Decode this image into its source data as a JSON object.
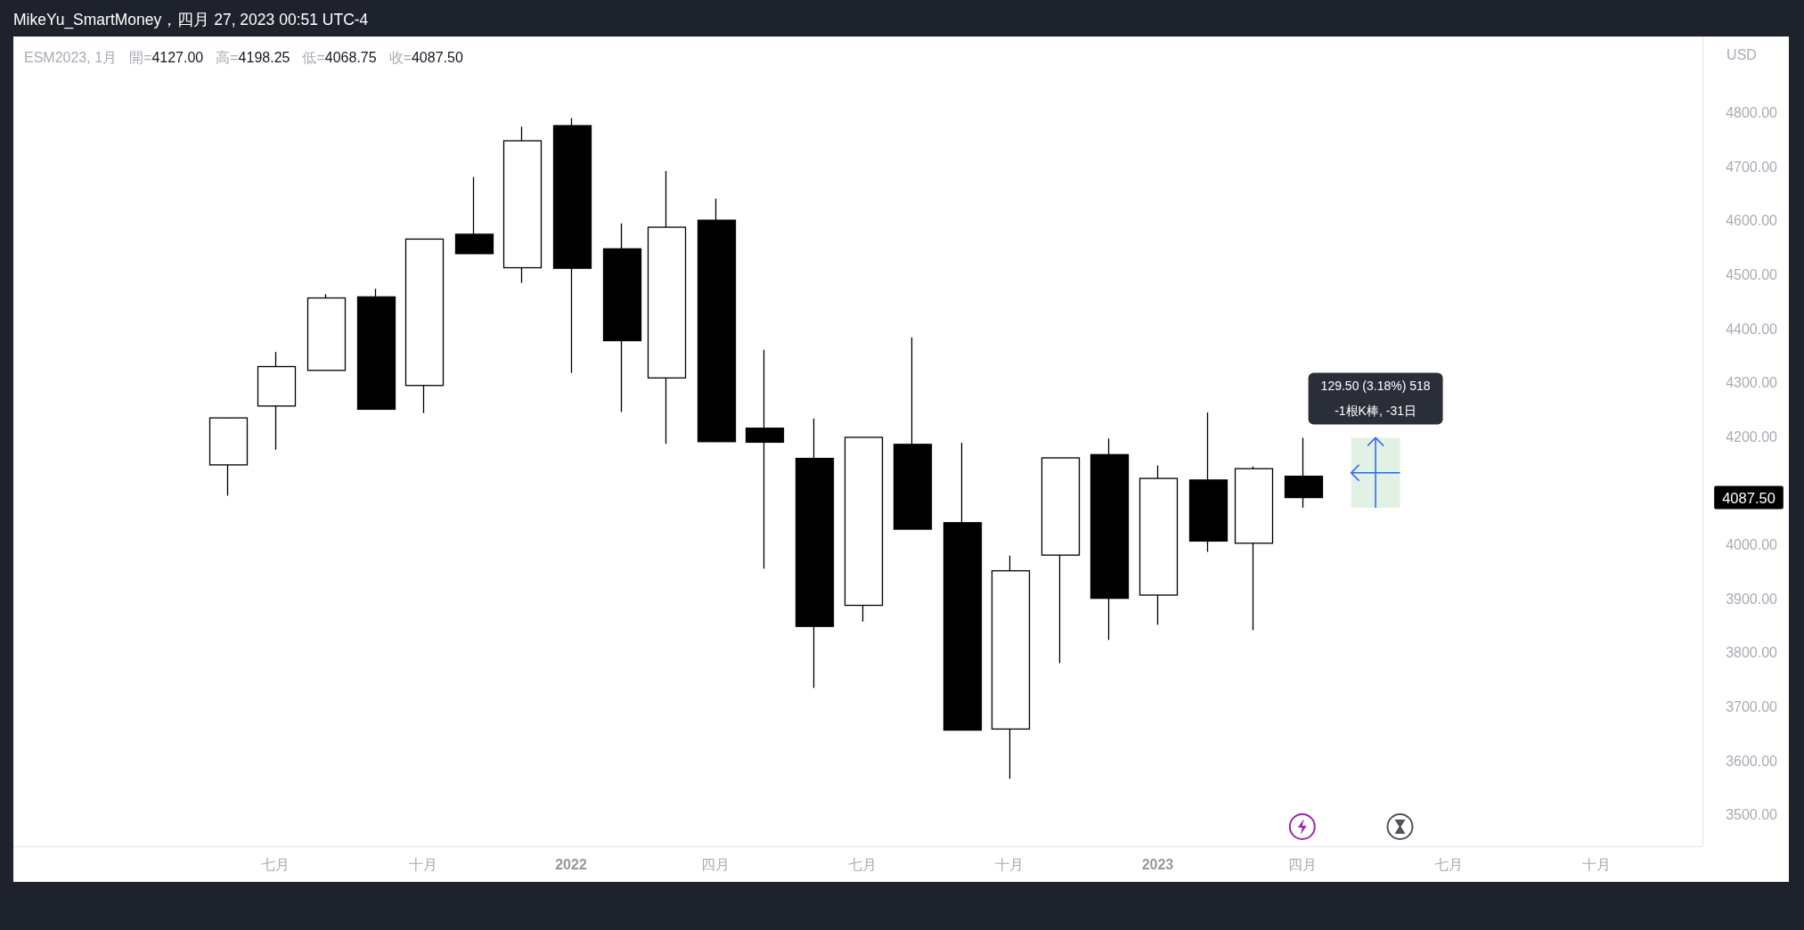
{
  "chart_data": {
    "type": "candlestick",
    "title": "MikeYu_SmartMoney，四月 27, 2023 00:51 UTC-4",
    "subtitle": "ESM2023, 1月",
    "ylabel": "USD",
    "annotations": [
      "開=4127.00",
      "高=4198.25",
      "低=4068.75",
      "收=4087.50",
      "129.50 (3.18%) 518\n-1根K棒, -31日",
      "4087.50"
    ],
    "x": [
      "2021-06",
      "2021-07",
      "2021-08",
      "2021-09",
      "2021-10",
      "2021-11",
      "2021-12",
      "2022-01",
      "2022-02",
      "2022-03",
      "2022-04",
      "2022-05",
      "2022-06",
      "2022-07",
      "2022-08",
      "2022-09",
      "2022-10",
      "2022-11",
      "2022-12",
      "2023-01",
      "2023-02",
      "2023-03",
      "2023-04"
    ],
    "ohlc": [
      [
        4148,
        4235,
        4091,
        4235
      ],
      [
        4257,
        4357,
        4176,
        4330
      ],
      [
        4323,
        4464,
        4323,
        4457
      ],
      [
        4459,
        4474,
        4251,
        4251
      ],
      [
        4295,
        4566,
        4244,
        4566
      ],
      [
        4575,
        4681,
        4539,
        4539
      ],
      [
        4513,
        4774,
        4485,
        4748
      ],
      [
        4776,
        4790,
        4318,
        4512
      ],
      [
        4548,
        4595,
        4246,
        4378
      ],
      [
        4309,
        4692,
        4187,
        4588
      ],
      [
        4601,
        4641,
        4191,
        4191
      ],
      [
        4216,
        4361,
        3956,
        4190
      ],
      [
        4160,
        4234,
        3735,
        3849
      ],
      [
        3888,
        4199,
        3858,
        4199
      ],
      [
        4186,
        4384,
        4029,
        4029
      ],
      [
        4041,
        4189,
        3657,
        3657
      ],
      [
        3659,
        3980,
        3567,
        3952
      ],
      [
        3981,
        4161,
        3781,
        4161
      ],
      [
        4167,
        4197,
        3824,
        3901
      ],
      [
        3907,
        4147,
        3852,
        4123
      ],
      [
        4120,
        4245,
        3987,
        4007
      ],
      [
        4003,
        4145,
        3842,
        4141
      ],
      [
        4127,
        4198.25,
        4068.75,
        4087.5
      ]
    ],
    "xlim": [
      "2021-01-19",
      "2023-12-06"
    ],
    "ylim": [
      3442,
      4941
    ],
    "xticks": [
      {
        "value": "2021-07",
        "label": "七月"
      },
      {
        "value": "2021-10",
        "label": "十月"
      },
      {
        "value": "2022-01",
        "label": "2022"
      },
      {
        "value": "2022-04",
        "label": "四月"
      },
      {
        "value": "2022-07",
        "label": "七月"
      },
      {
        "value": "2022-10",
        "label": "十月"
      },
      {
        "value": "2023-01",
        "label": "2023"
      },
      {
        "value": "2023-04",
        "label": "四月"
      },
      {
        "value": "2023-07",
        "label": "七月"
      },
      {
        "value": "2023-10",
        "label": "十月"
      }
    ],
    "yticks": [
      {
        "value": 3500,
        "label": "3500.00"
      },
      {
        "value": 3600,
        "label": "3600.00"
      },
      {
        "value": 3700,
        "label": "3700.00"
      },
      {
        "value": 3800,
        "label": "3800.00"
      },
      {
        "value": 3900,
        "label": "3900.00"
      },
      {
        "value": 4000,
        "label": "4000.00"
      },
      {
        "value": 4200,
        "label": "4200.00"
      },
      {
        "value": 4300,
        "label": "4300.00"
      },
      {
        "value": 4400,
        "label": "4400.00"
      },
      {
        "value": 4500,
        "label": "4500.00"
      },
      {
        "value": 4600,
        "label": "4600.00"
      },
      {
        "value": 4700,
        "label": "4700.00"
      },
      {
        "value": 4800,
        "label": "4800.00"
      }
    ]
  }
}
